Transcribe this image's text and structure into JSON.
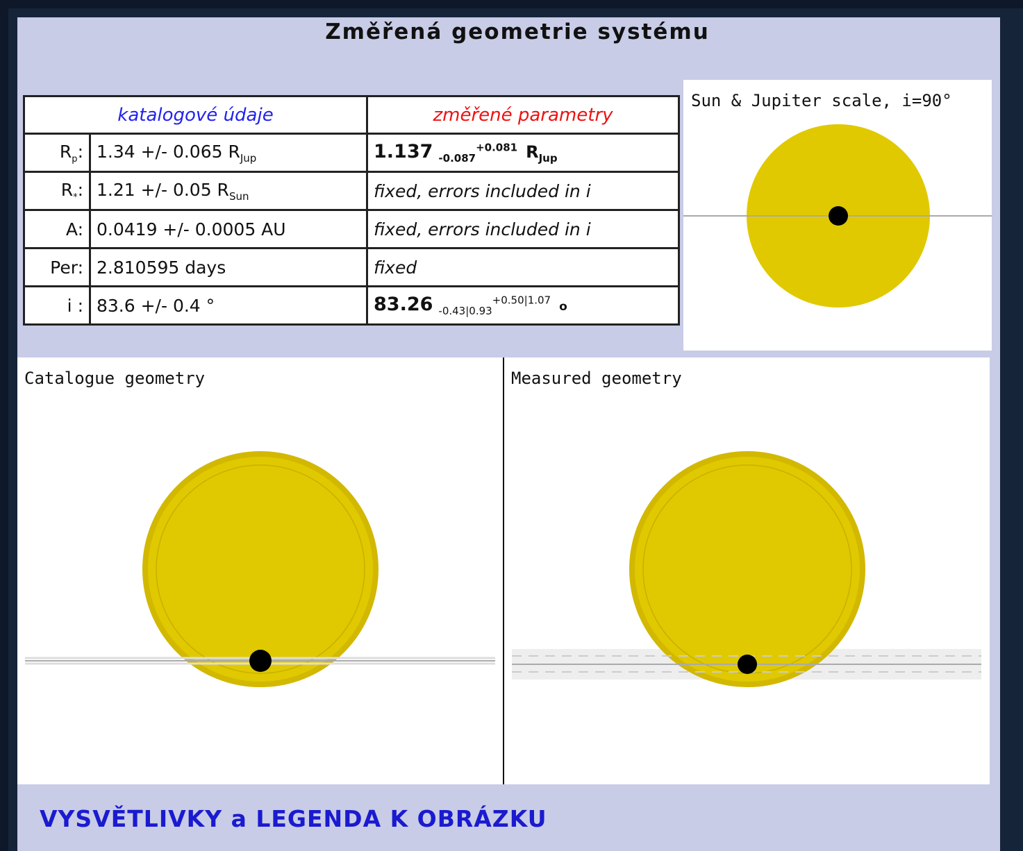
{
  "title": "Změřená geometrie systému",
  "table": {
    "headers": [
      "katalogové údaje",
      "změřené parametry"
    ],
    "rows": [
      {
        "label": "R",
        "label_sub": "p",
        "label_end": ":",
        "catalogue": "1.34 +/- 0.065 R",
        "catalogue_sub": "Jup",
        "measured": "1.137",
        "measured_sub": "-0.087",
        "measured_sup": "+0.081",
        "measured_unit": "R",
        "measured_unit_sub": "Jup"
      },
      {
        "label": "R",
        "label_sub": "*",
        "label_end": ":",
        "catalogue": "1.21 +/- 0.05 R",
        "catalogue_sub": "Sun",
        "measured": "fixed, errors included in i"
      },
      {
        "label": "A:",
        "catalogue": "0.0419 +/- 0.0005 AU",
        "measured": "fixed, errors included in i"
      },
      {
        "label": "Per:",
        "catalogue": "2.810595 days",
        "measured": "fixed"
      },
      {
        "label": "i :",
        "catalogue": "83.6 +/- 0.4 °",
        "measured": "83.26",
        "measured_sub": "-0.43|0.93",
        "measured_sup": "+0.50|1.07",
        "measured_unit": "o"
      }
    ]
  },
  "panels": {
    "scale": "Sun & Jupiter scale, i=90°",
    "catalogue": "Catalogue geometry",
    "measured": "Measured geometry"
  },
  "footer_link": "VYSVĚTLIVKY a LEGENDA K OBRÁZKU"
}
